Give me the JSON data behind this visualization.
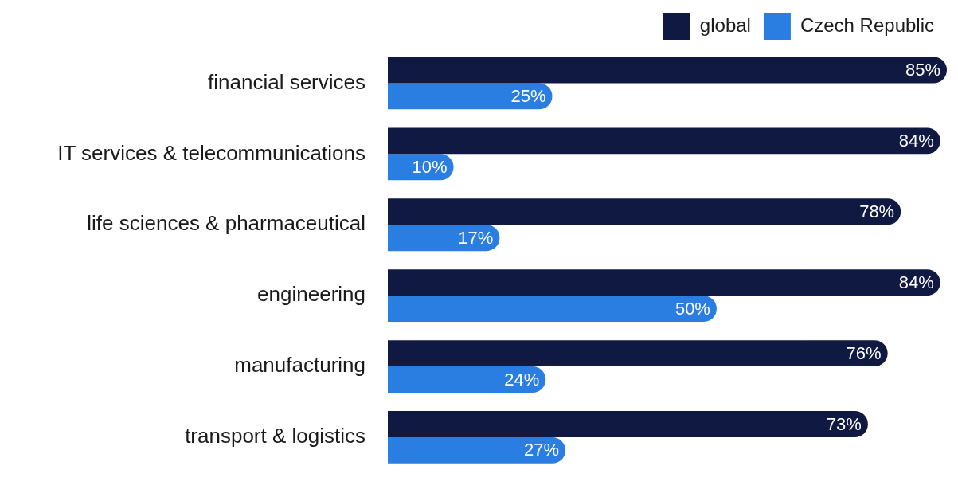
{
  "chart_data": {
    "type": "bar",
    "orientation": "horizontal",
    "categories": [
      "financial services",
      "IT services & telecommunications",
      "life sciences & pharmaceutical",
      "engineering",
      "manufacturing",
      "transport & logistics"
    ],
    "series": [
      {
        "name": "global",
        "color": "#0f1941",
        "values": [
          85,
          84,
          78,
          84,
          76,
          73
        ],
        "value_labels": [
          "85%",
          "84%",
          "78%",
          "84%",
          "76%",
          "73%"
        ]
      },
      {
        "name": "Czech Republic",
        "color": "#2a7de1",
        "values": [
          25,
          10,
          17,
          50,
          24,
          27
        ],
        "value_labels": [
          "25%",
          "10%",
          "17%",
          "50%",
          "24%",
          "27%"
        ]
      }
    ],
    "legend": "top right"
  }
}
